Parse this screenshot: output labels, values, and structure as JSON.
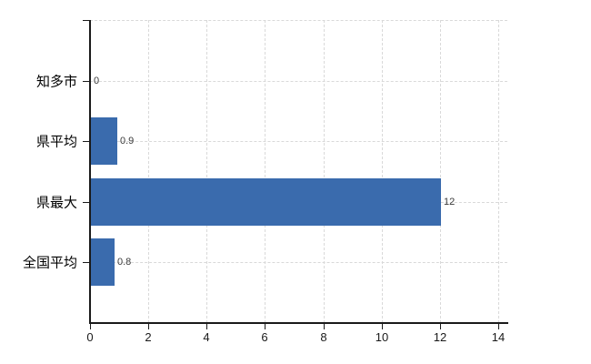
{
  "chart_data": {
    "type": "bar",
    "orientation": "horizontal",
    "title": "",
    "xlabel": "",
    "ylabel": "",
    "categories": [
      "知多市",
      "県平均",
      "県最大",
      "全国平均"
    ],
    "values": [
      0,
      0.9,
      12,
      0.8
    ],
    "value_labels": [
      "0",
      "0.9",
      "12",
      "0.8"
    ],
    "x_ticks": [
      0,
      2,
      4,
      6,
      8,
      10,
      12,
      14
    ],
    "xlim": [
      0,
      14
    ],
    "grid": "on",
    "legend": "none",
    "colors": {
      "bar": "#3a6bad",
      "grid": "#d9d9d9",
      "axis": "#1a1a1a",
      "category_label": "#000000",
      "value_label": "#3a3a3a",
      "tick_label": "#1a1a1a",
      "background": "#ffffff"
    }
  }
}
